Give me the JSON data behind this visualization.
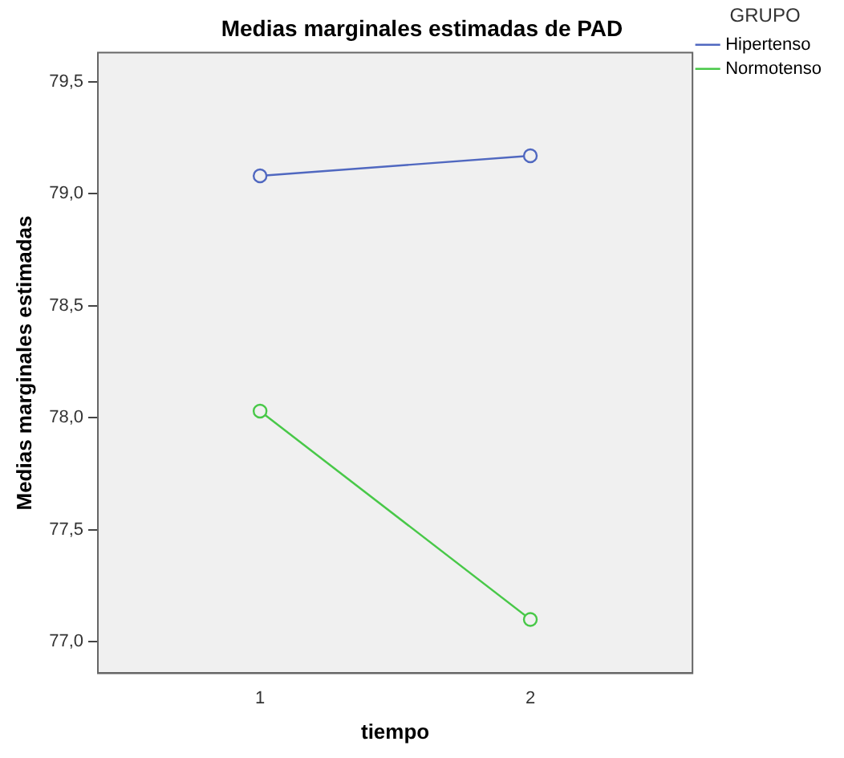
{
  "chart_data": {
    "type": "line",
    "title": "Medias marginales estimadas de PAD",
    "xlabel": "tiempo",
    "ylabel": "Medias marginales estimadas",
    "legend_title": "GRUPO",
    "x": [
      1,
      2
    ],
    "xlim": [
      0.4,
      2.6
    ],
    "xticks": [
      1,
      2
    ],
    "series": [
      {
        "name": "Hipertenso",
        "color": "#5068c0",
        "values": [
          79.08,
          79.17
        ]
      },
      {
        "name": "Normotenso",
        "color": "#48c848",
        "values": [
          78.03,
          77.1
        ]
      }
    ],
    "ylim": [
      76.86,
      79.63
    ],
    "yticks": [
      {
        "value": 77,
        "label": "77,0"
      },
      {
        "value": 77.5,
        "label": "77,5"
      },
      {
        "value": 78,
        "label": "78,0"
      },
      {
        "value": 78.5,
        "label": "78,5"
      },
      {
        "value": 79,
        "label": "79,0"
      },
      {
        "value": 79.5,
        "label": "79,5"
      }
    ],
    "grid": false,
    "legend": "top right",
    "marker": "circle",
    "line_style": "solid"
  }
}
